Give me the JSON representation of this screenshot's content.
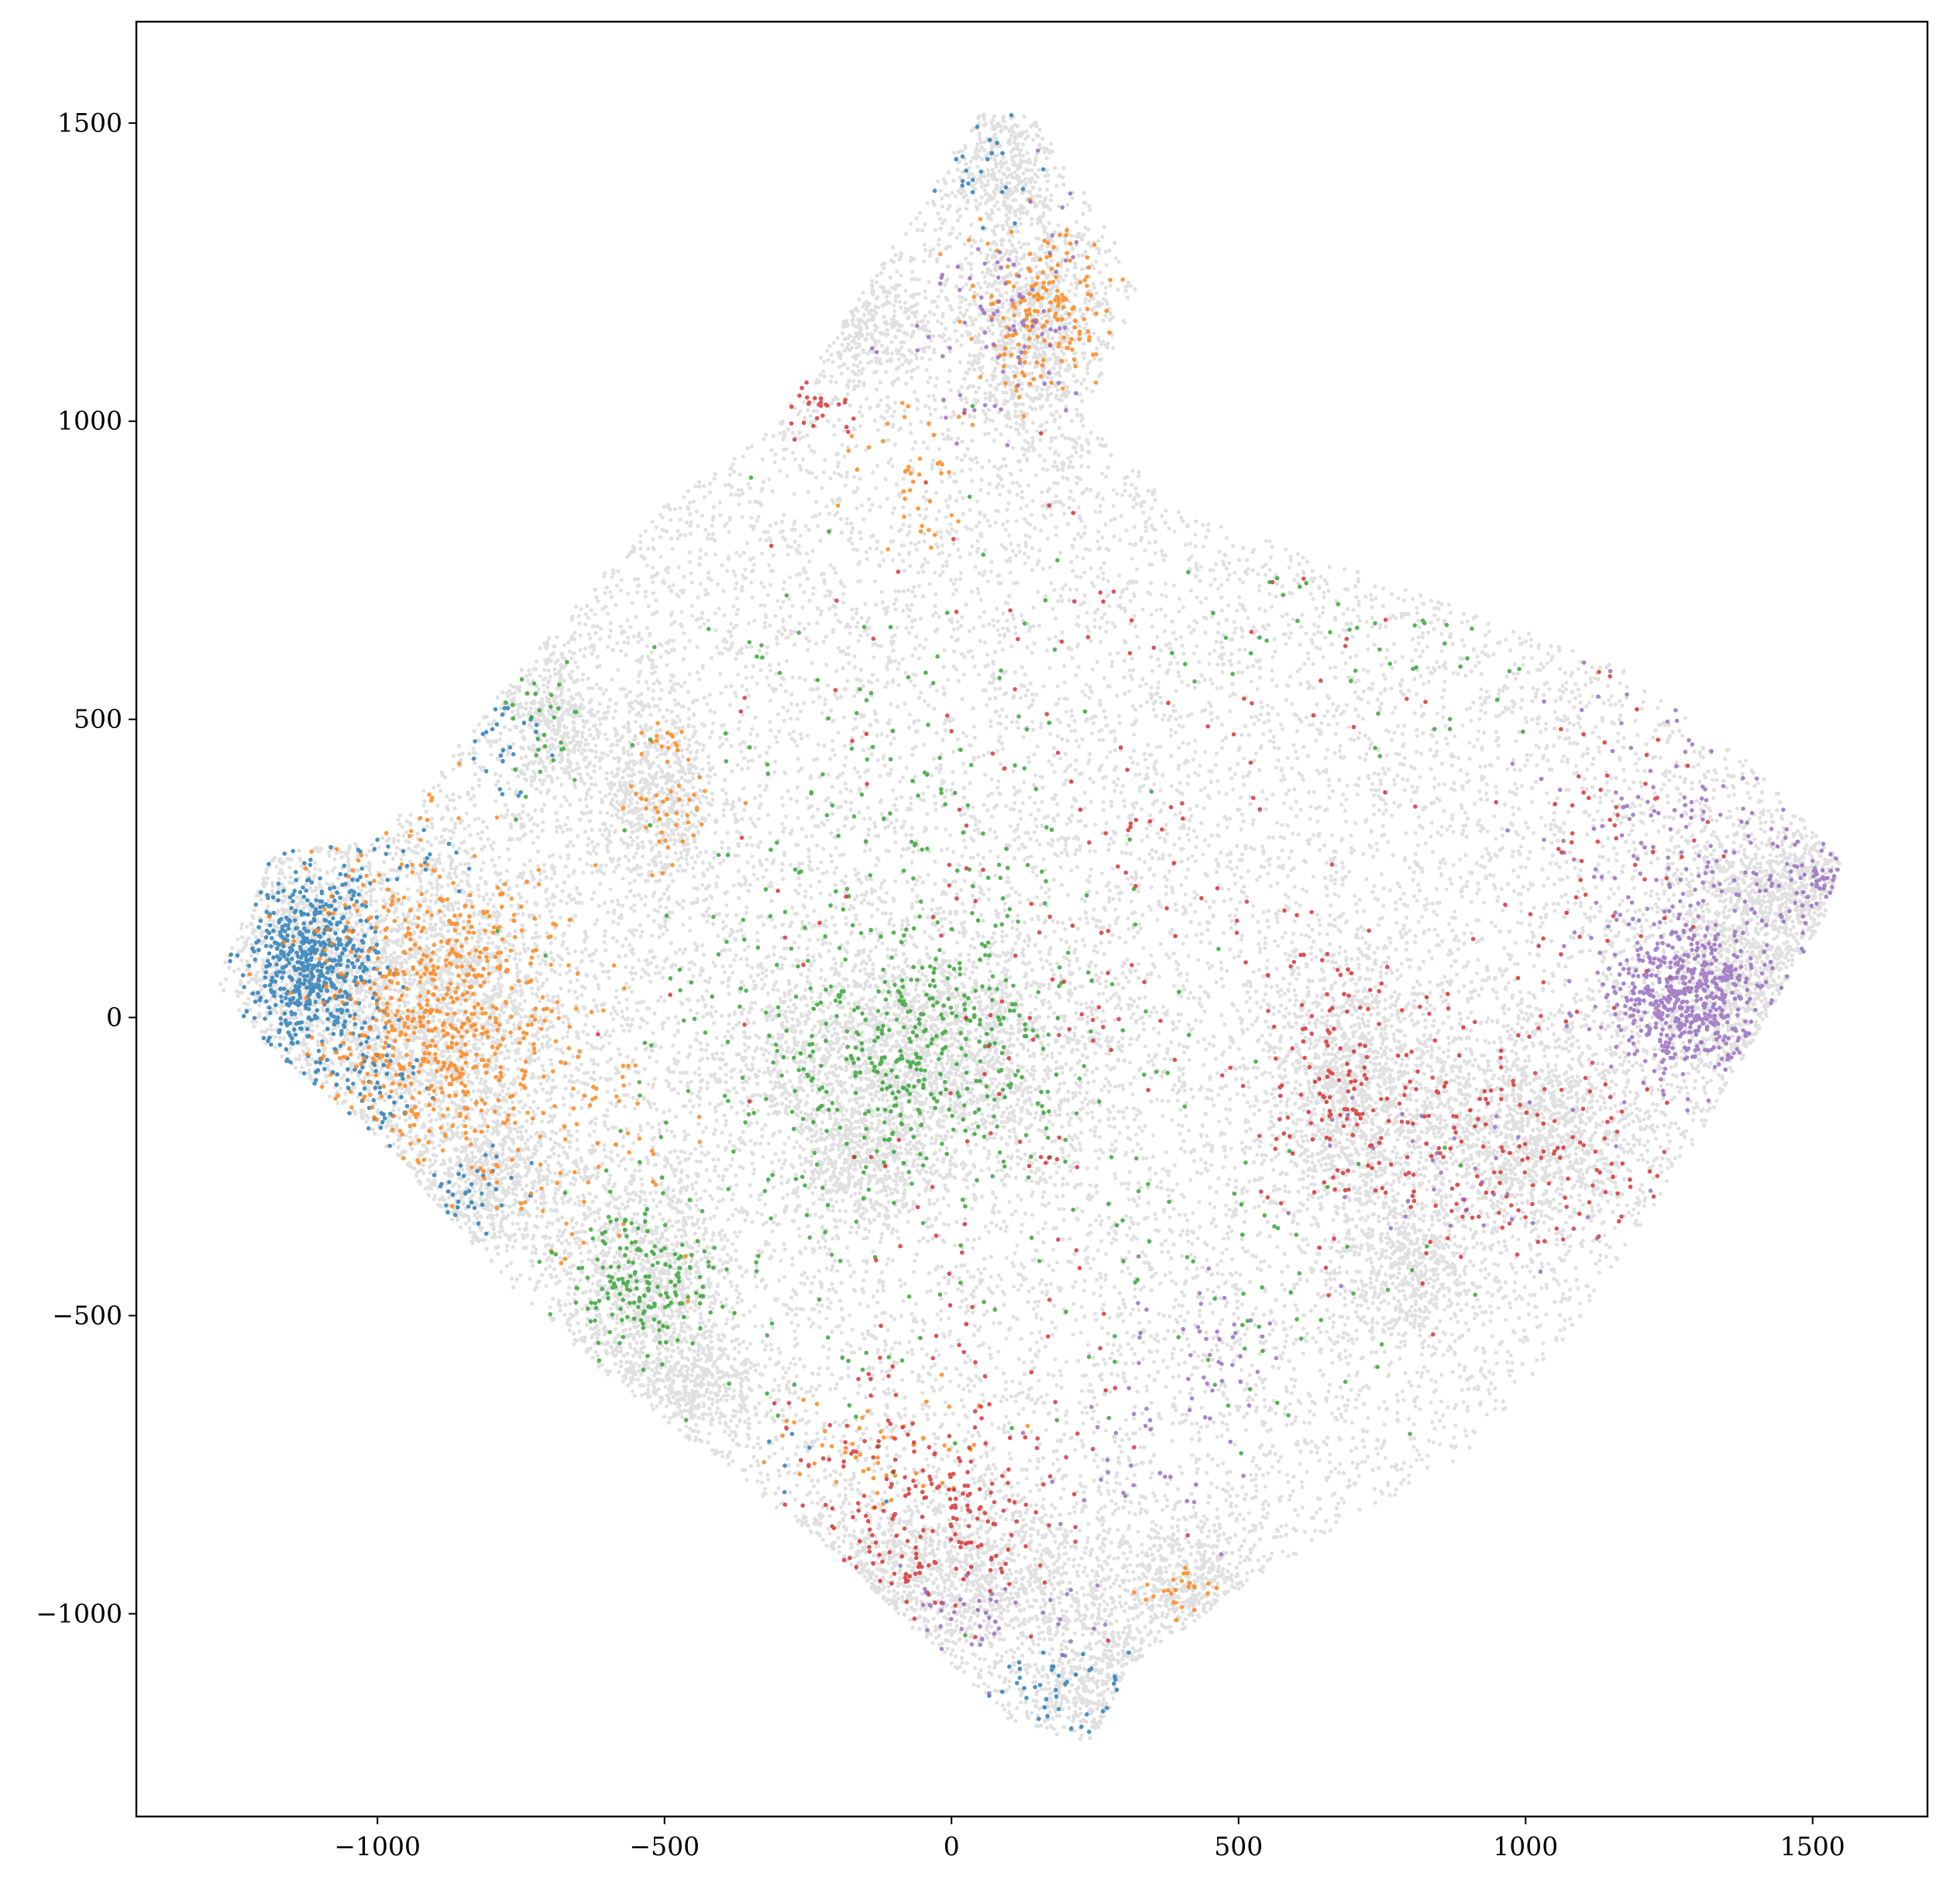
{
  "chart_data": {
    "type": "scatter",
    "title": "",
    "xlabel": "",
    "ylabel": "",
    "xlim": [
      -1420,
      1700
    ],
    "ylim": [
      -1340,
      1670
    ],
    "xticks": [
      -1000,
      -500,
      0,
      500,
      1000,
      1500
    ],
    "yticks": [
      -1000,
      -500,
      0,
      500,
      1000,
      1500
    ],
    "xtick_labels": [
      "−1000",
      "−500",
      "0",
      "500",
      "1000",
      "1500"
    ],
    "ytick_labels": [
      "−1000",
      "−500",
      "0",
      "500",
      "1000",
      "1500"
    ],
    "grid": false,
    "legend": "none",
    "background": {
      "name": "all points",
      "color": "#000000",
      "opacity": 0.12,
      "boundary_polygon": [
        [
          -1180,
          280
        ],
        [
          -1000,
          300
        ],
        [
          -700,
          640
        ],
        [
          -500,
          860
        ],
        [
          -300,
          1000
        ],
        [
          50,
          1520
        ],
        [
          150,
          1510
        ],
        [
          330,
          1230
        ],
        [
          230,
          1000
        ],
        [
          400,
          850
        ],
        [
          700,
          750
        ],
        [
          1020,
          640
        ],
        [
          1180,
          580
        ],
        [
          1400,
          420
        ],
        [
          1550,
          260
        ],
        [
          1520,
          170
        ],
        [
          1300,
          -200
        ],
        [
          1100,
          -500
        ],
        [
          900,
          -730
        ],
        [
          500,
          -960
        ],
        [
          300,
          -1100
        ],
        [
          250,
          -1220
        ],
        [
          100,
          -1180
        ],
        [
          -200,
          -900
        ],
        [
          -400,
          -750
        ],
        [
          -600,
          -600
        ],
        [
          -800,
          -420
        ],
        [
          -1000,
          -200
        ],
        [
          -1200,
          -40
        ],
        [
          -1280,
          60
        ]
      ],
      "dense_clusters": [
        {
          "x": -1120,
          "y": 100,
          "sx": 70,
          "sy": 90
        },
        {
          "x": -900,
          "y": 0,
          "sx": 120,
          "sy": 140
        },
        {
          "x": -800,
          "y": -280,
          "sx": 80,
          "sy": 60
        },
        {
          "x": -540,
          "y": -450,
          "sx": 80,
          "sy": 100
        },
        {
          "x": -450,
          "y": -620,
          "sx": 60,
          "sy": 50
        },
        {
          "x": -60,
          "y": -60,
          "sx": 170,
          "sy": 100
        },
        {
          "x": -40,
          "y": -940,
          "sx": 200,
          "sy": 70
        },
        {
          "x": 250,
          "y": -1120,
          "sx": 70,
          "sy": 60
        },
        {
          "x": 420,
          "y": -950,
          "sx": 60,
          "sy": 50
        },
        {
          "x": 140,
          "y": 1160,
          "sx": 70,
          "sy": 100
        },
        {
          "x": 80,
          "y": 1430,
          "sx": 40,
          "sy": 60
        },
        {
          "x": -140,
          "y": 1160,
          "sx": 50,
          "sy": 50
        },
        {
          "x": -520,
          "y": 380,
          "sx": 60,
          "sy": 80
        },
        {
          "x": -700,
          "y": 500,
          "sx": 50,
          "sy": 70
        },
        {
          "x": 1380,
          "y": 60,
          "sx": 90,
          "sy": 120
        },
        {
          "x": 1460,
          "y": 230,
          "sx": 70,
          "sy": 50
        },
        {
          "x": 700,
          "y": -120,
          "sx": 70,
          "sy": 120
        },
        {
          "x": 1000,
          "y": -180,
          "sx": 110,
          "sy": 90
        },
        {
          "x": 800,
          "y": -420,
          "sx": 60,
          "sy": 60
        },
        {
          "x": -620,
          "y": 1000,
          "sx": 50,
          "sy": 40
        },
        {
          "x": -160,
          "y": -240,
          "sx": 60,
          "sy": 60
        }
      ]
    },
    "series": [
      {
        "color": "#1f77b4",
        "clusters": [
          {
            "x": -1110,
            "y": 90,
            "sx": 55,
            "sy": 80,
            "n": 650
          },
          {
            "x": -1000,
            "y": -120,
            "sx": 40,
            "sy": 40,
            "n": 60
          },
          {
            "x": -820,
            "y": -300,
            "sx": 50,
            "sy": 40,
            "n": 40
          },
          {
            "x": -780,
            "y": 480,
            "sx": 40,
            "sy": 60,
            "n": 30
          },
          {
            "x": 190,
            "y": -1130,
            "sx": 60,
            "sy": 40,
            "n": 50
          },
          {
            "x": 60,
            "y": 1430,
            "sx": 50,
            "sy": 60,
            "n": 25
          },
          {
            "x": -300,
            "y": -850,
            "sx": 100,
            "sy": 80,
            "n": 20
          },
          {
            "x": -950,
            "y": 280,
            "sx": 60,
            "sy": 40,
            "n": 25
          }
        ]
      },
      {
        "color": "#ff7f0e",
        "clusters": [
          {
            "x": -900,
            "y": 0,
            "sx": 110,
            "sy": 140,
            "n": 700
          },
          {
            "x": 150,
            "y": 1180,
            "sx": 60,
            "sy": 70,
            "n": 180
          },
          {
            "x": -500,
            "y": 360,
            "sx": 50,
            "sy": 60,
            "n": 40
          },
          {
            "x": -500,
            "y": 470,
            "sx": 20,
            "sy": 20,
            "n": 15
          },
          {
            "x": -70,
            "y": 920,
            "sx": 50,
            "sy": 60,
            "n": 40
          },
          {
            "x": -100,
            "y": -720,
            "sx": 100,
            "sy": 50,
            "n": 50
          },
          {
            "x": 390,
            "y": -970,
            "sx": 30,
            "sy": 20,
            "n": 25
          },
          {
            "x": -620,
            "y": -200,
            "sx": 60,
            "sy": 120,
            "n": 50
          }
        ]
      },
      {
        "color": "#2ca02c",
        "clusters": [
          {
            "x": -60,
            "y": -60,
            "sx": 110,
            "sy": 90,
            "n": 300
          },
          {
            "x": -550,
            "y": -440,
            "sx": 60,
            "sy": 70,
            "n": 180
          },
          {
            "x": -130,
            "y": 60,
            "sx": 230,
            "sy": 350,
            "n": 350
          },
          {
            "x": -710,
            "y": 500,
            "sx": 30,
            "sy": 50,
            "n": 30
          },
          {
            "x": 500,
            "y": -420,
            "sx": 200,
            "sy": 150,
            "n": 60
          },
          {
            "x": 700,
            "y": 620,
            "sx": 200,
            "sy": 100,
            "n": 50
          }
        ]
      },
      {
        "color": "#d62728",
        "clusters": [
          {
            "x": -60,
            "y": -860,
            "sx": 130,
            "sy": 110,
            "n": 260
          },
          {
            "x": 680,
            "y": -130,
            "sx": 60,
            "sy": 110,
            "n": 120
          },
          {
            "x": 950,
            "y": -200,
            "sx": 140,
            "sy": 110,
            "n": 180
          },
          {
            "x": 1150,
            "y": 300,
            "sx": 100,
            "sy": 200,
            "n": 70
          },
          {
            "x": 200,
            "y": 300,
            "sx": 300,
            "sy": 350,
            "n": 160
          },
          {
            "x": -240,
            "y": 1030,
            "sx": 40,
            "sy": 30,
            "n": 30
          },
          {
            "x": 50,
            "y": -450,
            "sx": 150,
            "sy": 200,
            "n": 50
          }
        ]
      },
      {
        "color": "#9467bd",
        "clusters": [
          {
            "x": 1280,
            "y": 30,
            "sx": 70,
            "sy": 60,
            "n": 520
          },
          {
            "x": 1320,
            "y": 250,
            "sx": 140,
            "sy": 200,
            "n": 260
          },
          {
            "x": 1500,
            "y": 230,
            "sx": 40,
            "sy": 30,
            "n": 60
          },
          {
            "x": 80,
            "y": 1180,
            "sx": 80,
            "sy": 100,
            "n": 90
          },
          {
            "x": 450,
            "y": -550,
            "sx": 60,
            "sy": 60,
            "n": 40
          },
          {
            "x": 20,
            "y": -1020,
            "sx": 100,
            "sy": 50,
            "n": 60
          },
          {
            "x": 300,
            "y": -750,
            "sx": 100,
            "sy": 80,
            "n": 30
          },
          {
            "x": 800,
            "y": -300,
            "sx": 200,
            "sy": 120,
            "n": 40
          }
        ]
      }
    ]
  }
}
